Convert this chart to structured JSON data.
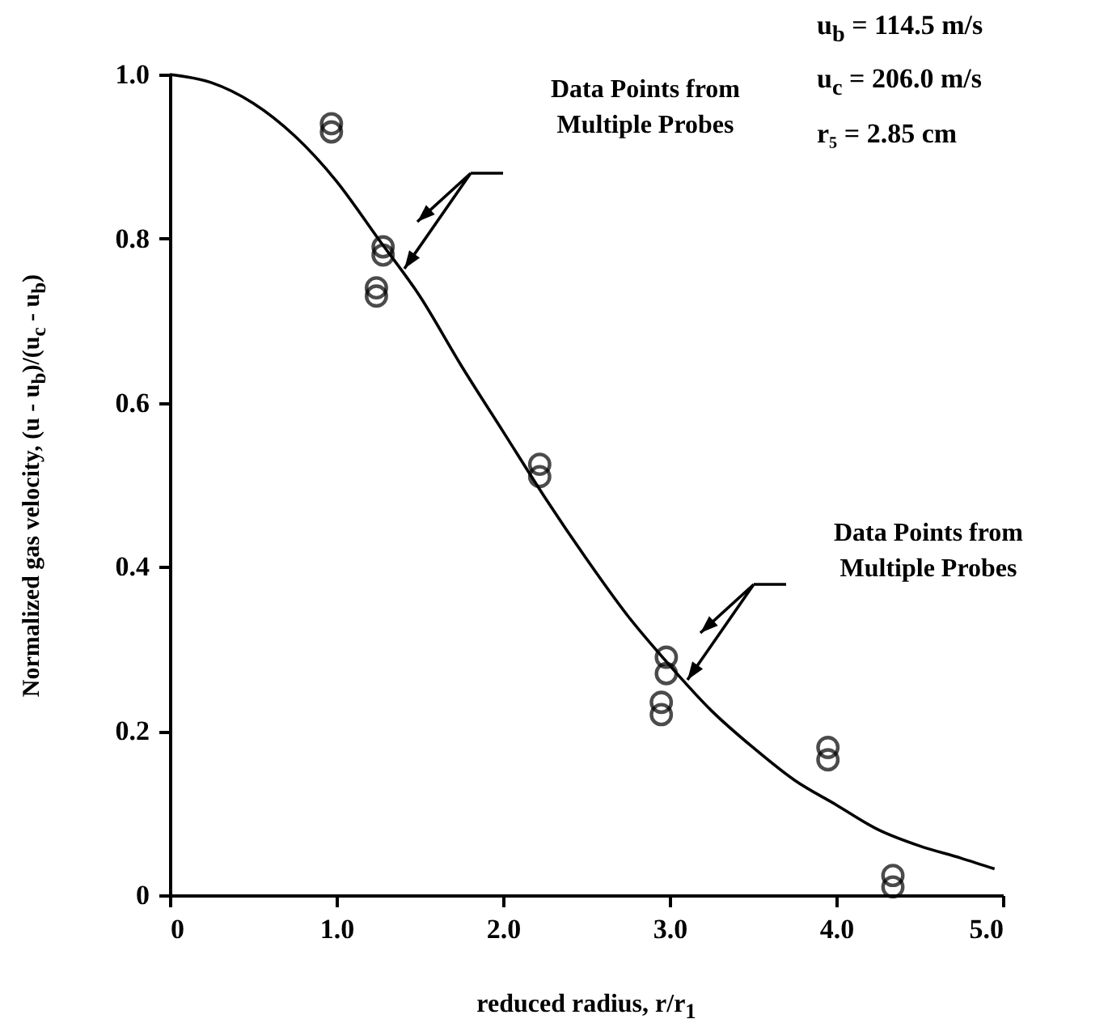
{
  "chart_data": {
    "type": "scatter",
    "xlabel": "reduced radius, r/r$_{1}$",
    "ylabel": "Normalized gas velocity, (u - u$_{b}$)/(u$_{c}$ - u$_{b}$)",
    "xlim": [
      0,
      5
    ],
    "ylim": [
      0,
      1
    ],
    "xticks": [
      0,
      {
        "value": 1,
        "label": "1.0"
      },
      {
        "value": 2,
        "label": "2.0"
      },
      {
        "value": 3,
        "label": "3.0"
      },
      {
        "value": 4,
        "label": "4.0"
      },
      {
        "value": 5,
        "label": "5.0"
      }
    ],
    "yticks": [
      0,
      0.2,
      0.4,
      0.6,
      0.8,
      {
        "value": 1,
        "label": "1.0"
      }
    ],
    "grid": false,
    "series": [
      {
        "marker": "circle",
        "color": "#000000",
        "x": [
          0.97,
          0.97,
          1.28,
          1.28,
          1.24,
          1.24,
          2.22,
          2.22,
          2.98,
          2.98,
          2.95,
          2.95,
          3.95,
          3.95,
          4.34,
          4.34
        ],
        "values": [
          0.94,
          0.93,
          0.79,
          0.78,
          0.74,
          0.73,
          0.525,
          0.51,
          0.29,
          0.27,
          0.235,
          0.22,
          0.18,
          0.165,
          0.024,
          0.01
        ]
      },
      {
        "type": "line",
        "color": "#000000",
        "x": [
          0,
          0.25,
          0.5,
          0.75,
          1,
          1.25,
          1.5,
          1.75,
          2,
          2.25,
          2.5,
          2.75,
          3,
          3.25,
          3.5,
          3.75,
          4,
          4.25,
          4.5,
          4.75,
          4.95
        ],
        "values": [
          1.0,
          0.99,
          0.965,
          0.925,
          0.87,
          0.8,
          0.73,
          0.645,
          0.565,
          0.485,
          0.41,
          0.34,
          0.28,
          0.225,
          0.18,
          0.14,
          0.11,
          0.08,
          0.06,
          0.045,
          0.032
        ]
      }
    ],
    "annotations": [
      "Data Points from Multiple Probes",
      "Data Points from Multiple Probes",
      "u$_{b}$ = 114.5 m/s",
      "u$_{c}$ = 206.0 m/s",
      "r₅ = 2.85 cm"
    ]
  }
}
